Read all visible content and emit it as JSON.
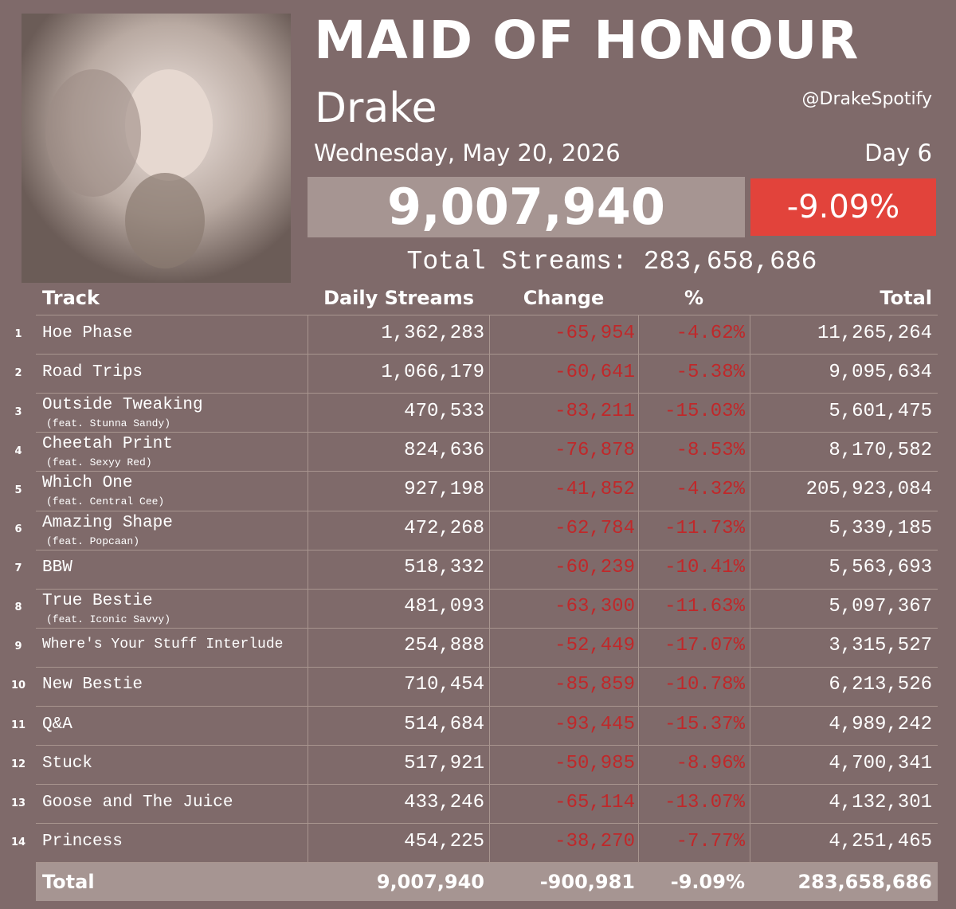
{
  "header": {
    "title": "MAID OF HONOUR",
    "artist": "Drake",
    "handle": "@DrakeSpotify",
    "date": "Wednesday, May 20, 2026",
    "day": "Day 6",
    "daily_streams": "9,007,940",
    "daily_change": "-9.09%",
    "total_streams": "Total Streams: 283,658,686"
  },
  "table": {
    "columns": [
      "Track",
      "Daily Streams",
      "Change",
      "%",
      "Total"
    ],
    "rows": [
      {
        "rank": "1",
        "track": "Hoe Phase",
        "daily": "1,362,283",
        "change": "-65,954",
        "pct": "-4.62%",
        "total": "11,265,264"
      },
      {
        "rank": "2",
        "track": "Road Trips",
        "daily": "1,066,179",
        "change": "-60,641",
        "pct": "-5.38%",
        "total": "9,095,634"
      },
      {
        "rank": "3",
        "track": "Outside Tweaking",
        "feat": "(feat. Stunna Sandy)",
        "daily": "470,533",
        "change": "-83,211",
        "pct": "-15.03%",
        "total": "5,601,475"
      },
      {
        "rank": "4",
        "track": "Cheetah Print",
        "feat": "(feat. Sexyy Red)",
        "daily": "824,636",
        "change": "-76,878",
        "pct": "-8.53%",
        "total": "8,170,582"
      },
      {
        "rank": "5",
        "track": "Which One",
        "feat": "(feat. Central Cee)",
        "daily": "927,198",
        "change": "-41,852",
        "pct": "-4.32%",
        "total": "205,923,084"
      },
      {
        "rank": "6",
        "track": "Amazing Shape",
        "feat": "(feat. Popcaan)",
        "daily": "472,268",
        "change": "-62,784",
        "pct": "-11.73%",
        "total": "5,339,185"
      },
      {
        "rank": "7",
        "track": "BBW",
        "daily": "518,332",
        "change": "-60,239",
        "pct": "-10.41%",
        "total": "5,563,693"
      },
      {
        "rank": "8",
        "track": "True Bestie",
        "feat": "(feat. Iconic Savvy)",
        "daily": "481,093",
        "change": "-63,300",
        "pct": "-11.63%",
        "total": "5,097,367"
      },
      {
        "rank": "9",
        "track": "Where's Your Stuff Interlude",
        "daily": "254,888",
        "change": "-52,449",
        "pct": "-17.07%",
        "total": "3,315,527"
      },
      {
        "rank": "10",
        "track": "New Bestie",
        "daily": "710,454",
        "change": "-85,859",
        "pct": "-10.78%",
        "total": "6,213,526"
      },
      {
        "rank": "11",
        "track": "Q&A",
        "daily": "514,684",
        "change": "-93,445",
        "pct": "-15.37%",
        "total": "4,989,242"
      },
      {
        "rank": "12",
        "track": "Stuck",
        "daily": "517,921",
        "change": "-50,985",
        "pct": "-8.96%",
        "total": "4,700,341"
      },
      {
        "rank": "13",
        "track": "Goose and The Juice",
        "daily": "433,246",
        "change": "-65,114",
        "pct": "-13.07%",
        "total": "4,132,301"
      },
      {
        "rank": "14",
        "track": "Princess",
        "daily": "454,225",
        "change": "-38,270",
        "pct": "-7.77%",
        "total": "4,251,465"
      }
    ],
    "total_row": {
      "label": "Total",
      "daily": "9,007,940",
      "change": "-900,981",
      "pct": "-9.09%",
      "total": "283,658,686"
    }
  }
}
